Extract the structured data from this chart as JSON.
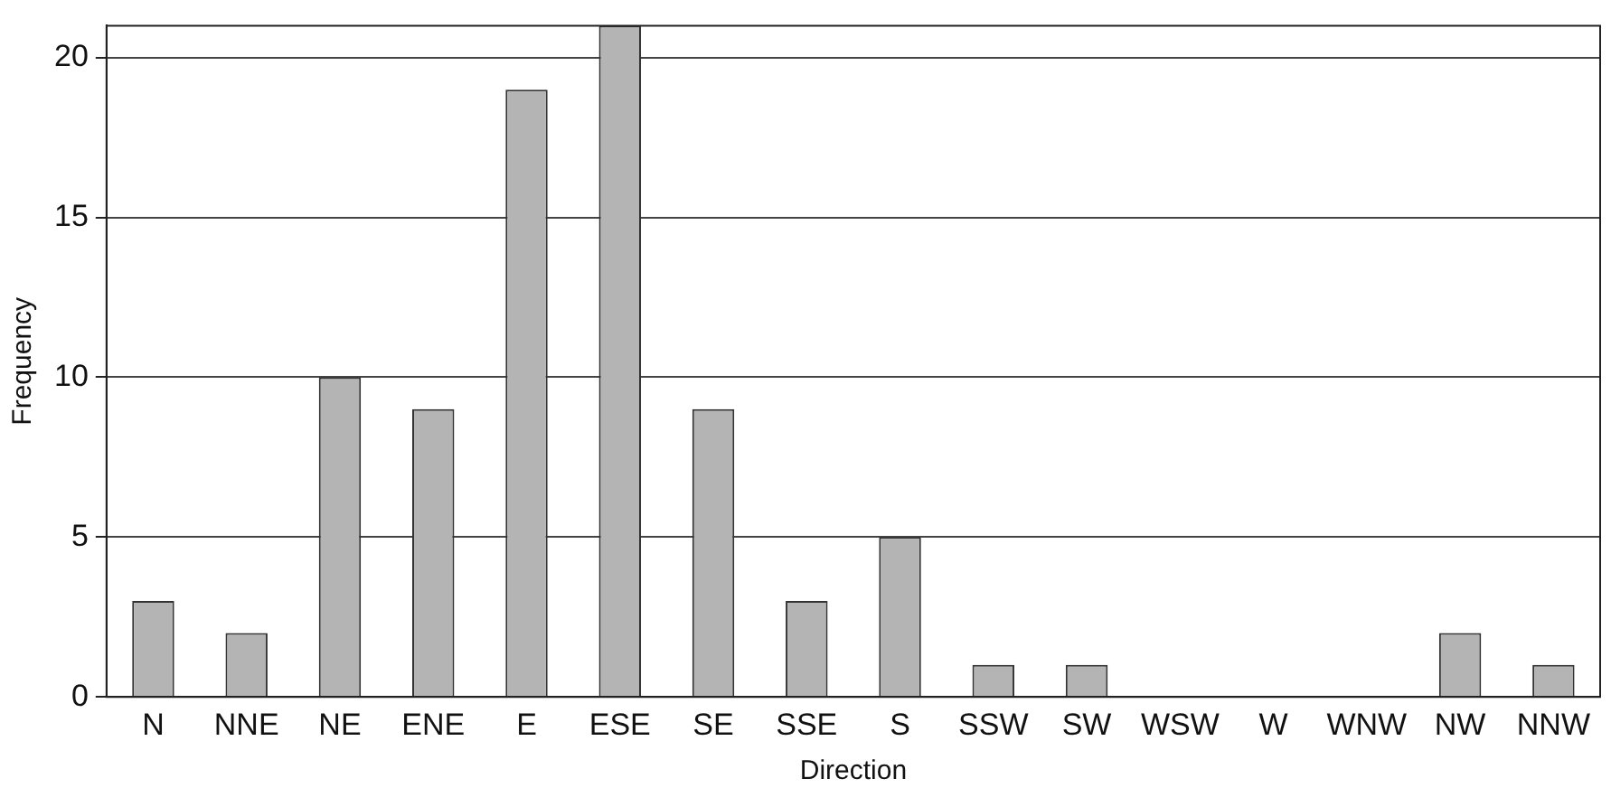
{
  "chart_data": {
    "type": "bar",
    "xlabel": "Direction",
    "ylabel": "Frequency",
    "categories": [
      "N",
      "NNE",
      "NE",
      "ENE",
      "E",
      "ESE",
      "SE",
      "SSE",
      "S",
      "SSW",
      "SW",
      "WSW",
      "W",
      "WNW",
      "NW",
      "NNW"
    ],
    "values": [
      3,
      2,
      10,
      9,
      19,
      21,
      9,
      3,
      5,
      1,
      1,
      0,
      0,
      0,
      2,
      1
    ],
    "color": "#b4b4b4",
    "ylim": [
      0,
      21
    ],
    "yticks": [
      0,
      5,
      10,
      15,
      20
    ],
    "grid": "y"
  }
}
